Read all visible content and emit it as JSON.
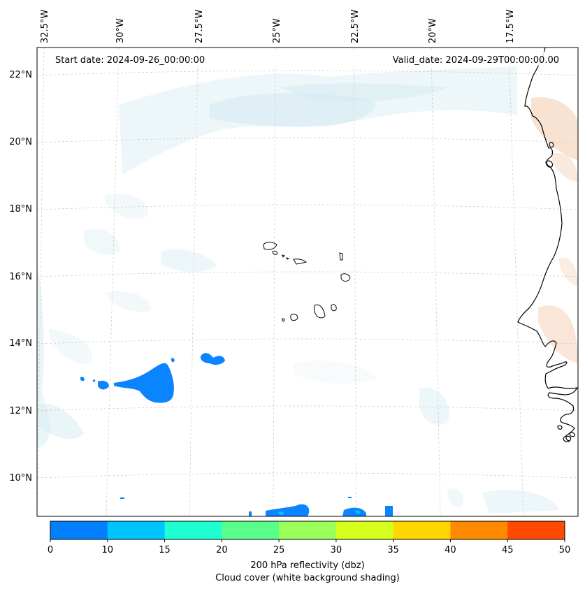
{
  "header": {
    "start_date": "Start date: 2024-09-26_00:00:00",
    "valid_date": "Valid_date: 2024-09-29T00:00:00.00"
  },
  "map": {
    "lon_labels": [
      "32.5°W",
      "30°W",
      "27.5°W",
      "25°W",
      "22.5°W",
      "20°W",
      "17.5°W"
    ],
    "lat_labels": [
      "22°N",
      "20°N",
      "18°N",
      "16°N",
      "14°N",
      "12°N",
      "10°N"
    ],
    "gridline_style": "dashed",
    "colors": {
      "reflectivity": "#0a84ff",
      "cloud": "#d6ebf2",
      "land_warm": "#f6dcc7",
      "coast": "#000000"
    }
  },
  "colorbar": {
    "ticks": [
      "0",
      "10",
      "15",
      "20",
      "25",
      "30",
      "35",
      "40",
      "45",
      "50"
    ],
    "label": "200 hPa reflectivity (dbz)",
    "sublabel": "Cloud cover (white background shading)",
    "colors": [
      "#0080ff",
      "#00c4ff",
      "#1effd2",
      "#5aff8a",
      "#9bff5a",
      "#d6ff1e",
      "#ffd600",
      "#ff8a00",
      "#ff4a00"
    ]
  }
}
